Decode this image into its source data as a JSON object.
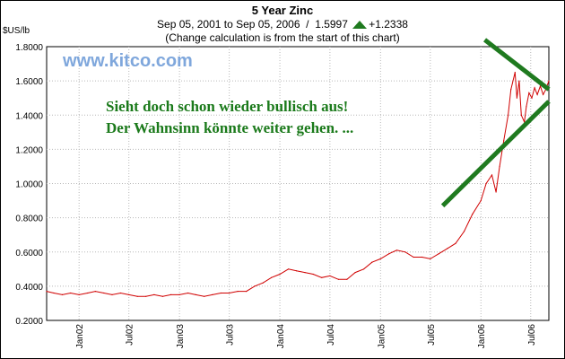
{
  "chart_data": {
    "type": "line",
    "title": "5 Year Zinc",
    "subtitle_range": "Sep 05, 2001 to Sep 05, 2006",
    "subtitle_sep": "/",
    "last_value": "1.5997",
    "change": "+1.2338",
    "note": "(Change calculation is from the start of this chart)",
    "ylabel": "$US/lb",
    "ylim": [
      0.2,
      1.8
    ],
    "yticks": [
      "0.2000",
      "0.4000",
      "0.6000",
      "0.8000",
      "1.0000",
      "1.2000",
      "1.4000",
      "1.6000",
      "1.8000"
    ],
    "xlim": [
      "2001-09-05",
      "2006-09-05"
    ],
    "xticks": [
      {
        "label": "Jan02",
        "date": "2002-01-01"
      },
      {
        "label": "Jul02",
        "date": "2002-07-01"
      },
      {
        "label": "Jan03",
        "date": "2003-01-01"
      },
      {
        "label": "Jul03",
        "date": "2003-07-01"
      },
      {
        "label": "Jan04",
        "date": "2004-01-01"
      },
      {
        "label": "Jul04",
        "date": "2004-07-01"
      },
      {
        "label": "Jan05",
        "date": "2005-01-01"
      },
      {
        "label": "Jul05",
        "date": "2005-07-01"
      },
      {
        "label": "Jan06",
        "date": "2006-01-01"
      },
      {
        "label": "Jul06",
        "date": "2006-07-01"
      }
    ],
    "grid": true,
    "series": [
      {
        "color": "#d00000",
        "points": [
          [
            "2001-09-05",
            0.37
          ],
          [
            "2001-10-01",
            0.36
          ],
          [
            "2001-11-01",
            0.35
          ],
          [
            "2001-12-01",
            0.36
          ],
          [
            "2002-01-01",
            0.35
          ],
          [
            "2002-02-01",
            0.36
          ],
          [
            "2002-03-01",
            0.37
          ],
          [
            "2002-04-01",
            0.36
          ],
          [
            "2002-05-01",
            0.35
          ],
          [
            "2002-06-01",
            0.36
          ],
          [
            "2002-07-01",
            0.35
          ],
          [
            "2002-08-01",
            0.34
          ],
          [
            "2002-09-01",
            0.34
          ],
          [
            "2002-10-01",
            0.35
          ],
          [
            "2002-11-01",
            0.34
          ],
          [
            "2002-12-01",
            0.35
          ],
          [
            "2003-01-01",
            0.35
          ],
          [
            "2003-02-01",
            0.36
          ],
          [
            "2003-03-01",
            0.35
          ],
          [
            "2003-04-01",
            0.34
          ],
          [
            "2003-05-01",
            0.35
          ],
          [
            "2003-06-01",
            0.36
          ],
          [
            "2003-07-01",
            0.36
          ],
          [
            "2003-08-01",
            0.37
          ],
          [
            "2003-09-01",
            0.37
          ],
          [
            "2003-10-01",
            0.4
          ],
          [
            "2003-11-01",
            0.42
          ],
          [
            "2003-12-01",
            0.45
          ],
          [
            "2004-01-01",
            0.47
          ],
          [
            "2004-02-01",
            0.5
          ],
          [
            "2004-03-01",
            0.49
          ],
          [
            "2004-04-01",
            0.48
          ],
          [
            "2004-05-01",
            0.47
          ],
          [
            "2004-06-01",
            0.45
          ],
          [
            "2004-07-01",
            0.46
          ],
          [
            "2004-08-01",
            0.44
          ],
          [
            "2004-09-01",
            0.44
          ],
          [
            "2004-10-01",
            0.48
          ],
          [
            "2004-11-01",
            0.5
          ],
          [
            "2004-12-01",
            0.54
          ],
          [
            "2005-01-01",
            0.56
          ],
          [
            "2005-02-01",
            0.59
          ],
          [
            "2005-03-01",
            0.61
          ],
          [
            "2005-04-01",
            0.6
          ],
          [
            "2005-05-01",
            0.57
          ],
          [
            "2005-06-01",
            0.57
          ],
          [
            "2005-07-01",
            0.56
          ],
          [
            "2005-08-01",
            0.59
          ],
          [
            "2005-09-01",
            0.62
          ],
          [
            "2005-10-01",
            0.65
          ],
          [
            "2005-11-01",
            0.72
          ],
          [
            "2005-12-01",
            0.82
          ],
          [
            "2006-01-01",
            0.9
          ],
          [
            "2006-01-20",
            1.0
          ],
          [
            "2006-02-10",
            1.05
          ],
          [
            "2006-02-25",
            0.95
          ],
          [
            "2006-03-10",
            1.1
          ],
          [
            "2006-03-25",
            1.25
          ],
          [
            "2006-04-10",
            1.4
          ],
          [
            "2006-04-20",
            1.55
          ],
          [
            "2006-05-05",
            1.65
          ],
          [
            "2006-05-12",
            1.5
          ],
          [
            "2006-05-20",
            1.6
          ],
          [
            "2006-05-28",
            1.4
          ],
          [
            "2006-06-08",
            1.36
          ],
          [
            "2006-06-15",
            1.45
          ],
          [
            "2006-06-25",
            1.53
          ],
          [
            "2006-07-05",
            1.5
          ],
          [
            "2006-07-15",
            1.56
          ],
          [
            "2006-07-25",
            1.52
          ],
          [
            "2006-08-05",
            1.57
          ],
          [
            "2006-08-15",
            1.52
          ],
          [
            "2006-08-25",
            1.55
          ],
          [
            "2006-09-05",
            1.6
          ]
        ]
      }
    ],
    "trendlines": [
      {
        "color": "#1f7a1f",
        "from": [
          "2005-08-15",
          0.87
        ],
        "to": [
          "2006-09-05",
          1.48
        ]
      },
      {
        "color": "#1f7a1f",
        "from": [
          "2006-01-15",
          1.84
        ],
        "to": [
          "2006-09-05",
          1.55
        ]
      }
    ],
    "watermark": "www.kitco.com",
    "annotations": [
      "Sieht doch schon wieder bullisch aus!",
      "Der Wahnsinn könnte weiter gehen. ..."
    ]
  }
}
